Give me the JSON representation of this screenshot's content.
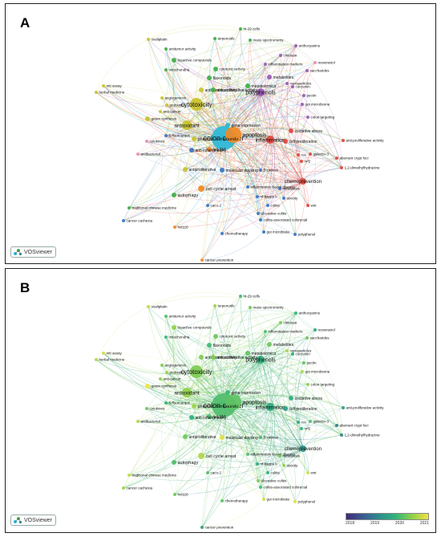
{
  "panels": [
    {
      "letter": "A",
      "mode": "cluster"
    },
    {
      "letter": "B",
      "mode": "year"
    }
  ],
  "vosviewer_label": "VOSviewer",
  "colorbar": {
    "ticks": [
      "2018",
      "2019",
      "2020",
      "2021"
    ],
    "stops": [
      "#3d2c73",
      "#3b5b93",
      "#2f8c8c",
      "#2fb47c",
      "#8fd04b",
      "#f0e442"
    ]
  },
  "cluster_colors": {
    "cyan": "#2bb7d6",
    "orange": "#f08a24",
    "red": "#e2453c",
    "yellow": "#c8c22c",
    "green": "#3fae49",
    "blue": "#3a75c4",
    "purple": "#9b59b6",
    "pink": "#e68fb8",
    "lightblue": "#6fb6d9"
  },
  "nodes": [
    {
      "label": "colon cancer",
      "c": "cyan",
      "y": 2020.0
    },
    {
      "label": "cytotoxicity",
      "c": "yellow",
      "y": 2020.3
    },
    {
      "label": "polyphenols",
      "c": "purple",
      "y": 2019.7
    },
    {
      "label": "inflammation",
      "c": "red",
      "y": 2019.6
    },
    {
      "label": "antioxidant",
      "c": "yellow",
      "y": 2020.4
    },
    {
      "label": "chemoprevention",
      "c": "red",
      "y": 2019.3
    },
    {
      "label": "apoptosis",
      "c": "orange",
      "y": 2020.1
    },
    {
      "label": "hct-116",
      "c": "orange",
      "y": 2020.0
    },
    {
      "label": "gene expression",
      "c": "cyan",
      "y": 2019.9
    },
    {
      "label": "anticancer activity",
      "c": "yellow",
      "y": 2020.3
    },
    {
      "label": "phenolic compounds",
      "c": "yellow",
      "y": 2020.5
    },
    {
      "label": "anti-inflammatory",
      "c": "blue",
      "y": 2019.8
    },
    {
      "label": "antiproliferative",
      "c": "yellow",
      "y": 2020.2
    },
    {
      "label": "cell cycle arrest",
      "c": "orange",
      "y": 2020.6
    },
    {
      "label": "molecular docking",
      "c": "blue",
      "y": 2020.9
    },
    {
      "label": "autophagy",
      "c": "green",
      "y": 2020.0
    },
    {
      "label": "oxidative stress",
      "c": "red",
      "y": 2019.7
    },
    {
      "label": "cell proliferation",
      "c": "red",
      "y": 2019.5
    },
    {
      "label": "anti-proliferative activity",
      "c": "red",
      "y": 2019.4
    },
    {
      "label": "aberrant crypt foci",
      "c": "red",
      "y": 2019.0
    },
    {
      "label": "1,2-dimethylhydrazine",
      "c": "red",
      "y": 2019.1
    },
    {
      "label": "flavonoids",
      "c": "green",
      "y": 2019.9
    },
    {
      "label": "cytotoxic activity",
      "c": "green",
      "y": 2020.2
    },
    {
      "label": "antiproliferative activity",
      "c": "green",
      "y": 2020.3
    },
    {
      "label": "metabolomics",
      "c": "green",
      "y": 2020.1
    },
    {
      "label": "metabolites",
      "c": "purple",
      "y": 2020.2
    },
    {
      "label": "bioactive compounds",
      "c": "green",
      "y": 2020.4
    },
    {
      "label": "mitochondria",
      "c": "green",
      "y": 2019.8
    },
    {
      "label": "antitumor activity",
      "c": "green",
      "y": 2020.0
    },
    {
      "label": "terpenoids",
      "c": "green",
      "y": 2020.5
    },
    {
      "label": "ht-29 cells",
      "c": "green",
      "y": 2019.9
    },
    {
      "label": "mass spectrometry",
      "c": "green",
      "y": 2020.2
    },
    {
      "label": "oxaliplatin",
      "c": "yellow",
      "y": 2020.7
    },
    {
      "label": "anthocyanins",
      "c": "purple",
      "y": 2019.8
    },
    {
      "label": "chitosan",
      "c": "purple",
      "y": 2020.3
    },
    {
      "label": "inflammation markers",
      "c": "purple",
      "y": 2020.0
    },
    {
      "label": "nanoparticles",
      "c": "purple",
      "y": 2020.6
    },
    {
      "label": "resveratrol",
      "c": "pink",
      "y": 2019.5
    },
    {
      "label": "curcumin",
      "c": "purple",
      "y": 2019.7
    },
    {
      "label": "colon targeting",
      "c": "purple",
      "y": 2020.4
    },
    {
      "label": "pectin",
      "c": "purple",
      "y": 2020.1
    },
    {
      "label": "gut microbiome",
      "c": "purple",
      "y": 2020.6
    },
    {
      "label": "angiogenesis",
      "c": "yellow",
      "y": 2020.3
    },
    {
      "label": "probiotics",
      "c": "yellow",
      "y": 2020.5
    },
    {
      "label": "anti-cancer",
      "c": "yellow",
      "y": 2020.4
    },
    {
      "label": "green synthesis",
      "c": "yellow",
      "y": 2021.0
    },
    {
      "label": "5-fluorouracil",
      "c": "blue",
      "y": 2019.8
    },
    {
      "label": "cytokines",
      "c": "pink",
      "y": 2020.2
    },
    {
      "label": "antibacterial",
      "c": "pink",
      "y": 2020.6
    },
    {
      "label": "mtt assay",
      "c": "yellow",
      "y": 2020.8
    },
    {
      "label": "herbal medicine",
      "c": "yellow",
      "y": 2020.6
    },
    {
      "label": "traditional chinese medicine",
      "c": "green",
      "y": 2020.7
    },
    {
      "label": "cancer cachexia",
      "c": "blue",
      "y": 2020.5
    },
    {
      "label": "hct116",
      "c": "orange",
      "y": 2020.2
    },
    {
      "label": "caco-2",
      "c": "blue",
      "y": 2020.0
    },
    {
      "label": "nf-kappa b",
      "c": "blue",
      "y": 2019.6
    },
    {
      "label": "colitis",
      "c": "blue",
      "y": 2019.7
    },
    {
      "label": "ulcerative colitis",
      "c": "blue",
      "y": 2020.3
    },
    {
      "label": "colitis-associated colorectal",
      "c": "blue",
      "y": 2019.9
    },
    {
      "label": "inflammatory bowel disease",
      "c": "blue",
      "y": 2020.0
    },
    {
      "label": "gut microbiota",
      "c": "blue",
      "y": 2020.8
    },
    {
      "label": "chemotherapy",
      "c": "blue",
      "y": 2020.1
    },
    {
      "label": "cancer prevention",
      "c": "orange",
      "y": 2019.4
    },
    {
      "label": "metastasis",
      "c": "blue",
      "y": 2020.2
    },
    {
      "label": "β-catenin",
      "c": "blue",
      "y": 2019.9
    },
    {
      "label": "polyphenol",
      "c": "blue",
      "y": 2020.9
    },
    {
      "label": "toxicity",
      "c": "blue",
      "y": 2020.4
    },
    {
      "label": "wnt",
      "c": "red",
      "y": 2020.8
    },
    {
      "label": "nrf2",
      "c": "red",
      "y": 2019.8
    },
    {
      "label": "galectin-3",
      "c": "red",
      "y": 2020.0
    },
    {
      "label": "ros",
      "c": "red",
      "y": 2019.6
    },
    {
      "label": "saccharides",
      "c": "purple",
      "y": 2020.2
    }
  ]
}
